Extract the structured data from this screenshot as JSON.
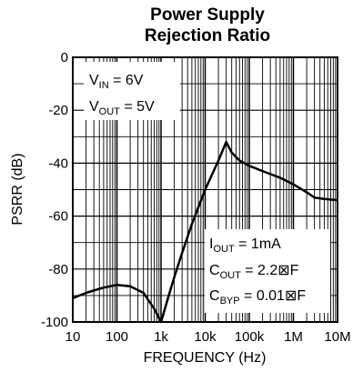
{
  "chart_data": {
    "type": "line",
    "title": "Power Supply",
    "subtitle": "Rejection Ratio",
    "xlabel": "FREQUENCY (Hz)",
    "ylabel": "PSRR (dB)",
    "x_scale": "log",
    "xlim": [
      10,
      10000000
    ],
    "ylim": [
      -100,
      0
    ],
    "grid": true,
    "x_tick_labels": [
      "10",
      "100",
      "1k",
      "10k",
      "100k",
      "1M",
      "10M"
    ],
    "y_tick_labels": [
      "0",
      "-20",
      "-40",
      "-60",
      "-80",
      "-100"
    ],
    "series": [
      {
        "color": "#000000",
        "x": [
          10,
          20,
          50,
          100,
          200,
          400,
          700,
          1000,
          1500,
          2000,
          3000,
          5000,
          10000,
          20000,
          30000,
          40000,
          60000,
          100000,
          200000,
          500000,
          1000000,
          2000000,
          3000000,
          5000000,
          10000000
        ],
        "y": [
          -91,
          -89,
          -87,
          -86,
          -86.5,
          -89,
          -95,
          -100,
          -90,
          -83,
          -74,
          -63,
          -50,
          -39,
          -32,
          -36,
          -39,
          -41,
          -43,
          -45.5,
          -48,
          -51,
          -53,
          -53.5,
          -54
        ]
      }
    ],
    "annotations": [
      {
        "main": "V",
        "sub": "IN",
        "rest": " = 6V"
      },
      {
        "main": "V",
        "sub": "OUT",
        "rest": " = 5V"
      },
      {
        "main": "I",
        "sub": "OUT",
        "rest": " = 1mA"
      },
      {
        "main": "C",
        "sub": "OUT",
        "rest": " = 2.2⊠F"
      },
      {
        "main": "C",
        "sub": "BYP",
        "rest": " = 0.01⊠F"
      }
    ]
  }
}
